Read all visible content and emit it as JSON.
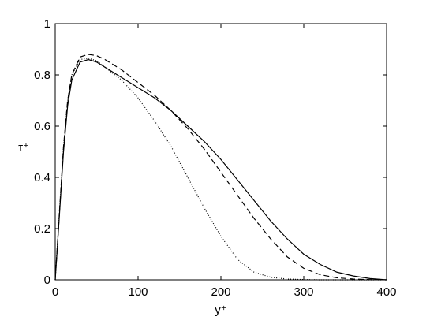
{
  "chart_data": {
    "type": "line",
    "x_label": "y⁺",
    "y_label": "τ⁺",
    "x": [
      0,
      5,
      10,
      15,
      20,
      30,
      40,
      50,
      60,
      80,
      100,
      120,
      140,
      160,
      180,
      200,
      220,
      240,
      260,
      280,
      300,
      320,
      340,
      360,
      380,
      400
    ],
    "series": [
      {
        "color": "#000000",
        "dash": "solid",
        "values": [
          0,
          0.25,
          0.5,
          0.68,
          0.78,
          0.85,
          0.86,
          0.85,
          0.83,
          0.79,
          0.75,
          0.71,
          0.66,
          0.6,
          0.54,
          0.47,
          0.39,
          0.31,
          0.23,
          0.16,
          0.1,
          0.06,
          0.03,
          0.015,
          0.005,
          0
        ]
      },
      {
        "color": "#000000",
        "dash": "dashed",
        "values": [
          0,
          0.26,
          0.52,
          0.7,
          0.8,
          0.87,
          0.88,
          0.875,
          0.86,
          0.82,
          0.77,
          0.72,
          0.66,
          0.59,
          0.51,
          0.42,
          0.33,
          0.24,
          0.16,
          0.09,
          0.045,
          0.02,
          0.008,
          0.003,
          0.001,
          0
        ]
      },
      {
        "color": "#000000",
        "dash": "dotted",
        "values": [
          0,
          0.26,
          0.52,
          0.7,
          0.8,
          0.86,
          0.865,
          0.855,
          0.83,
          0.78,
          0.71,
          0.62,
          0.52,
          0.4,
          0.28,
          0.17,
          0.08,
          0.03,
          0.01,
          0.003,
          0.001,
          0,
          0,
          0,
          0,
          0
        ]
      }
    ],
    "xlim": [
      0,
      400
    ],
    "xticks": [
      0,
      100,
      200,
      300,
      400
    ],
    "ylim": [
      0,
      1
    ],
    "yticks": [
      0,
      0.2,
      0.4,
      0.6,
      0.8,
      1
    ],
    "grid": false
  }
}
